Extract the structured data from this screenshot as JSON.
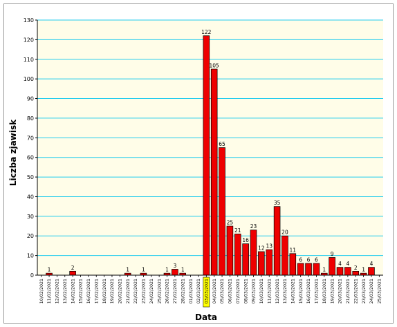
{
  "chart_data": {
    "type": "bar",
    "title": "",
    "xlabel": "Data",
    "ylabel": "Liczba zjawisk",
    "ylim": [
      0,
      130
    ],
    "ytick_step": 10,
    "grid": true,
    "highlighted_category": "03/03/2021",
    "categories": [
      "10/02/2021",
      "11/02/2021",
      "12/02/2021",
      "13/02/2021",
      "14/02/2021",
      "15/02/2021",
      "16/02/2021",
      "17/02/2021",
      "18/02/2021",
      "19/02/2021",
      "20/02/2021",
      "21/02/2021",
      "22/02/2021",
      "23/02/2021",
      "24/02/2021",
      "25/02/2021",
      "26/02/2021",
      "27/02/2021",
      "28/02/2021",
      "01/03/2021",
      "02/03/2021",
      "03/03/2021",
      "04/03/2021",
      "05/03/2021",
      "06/03/2021",
      "07/03/2021",
      "08/03/2021",
      "09/03/2021",
      "10/03/2021",
      "11/03/2021",
      "12/03/2021",
      "13/03/2021",
      "14/03/2021",
      "15/03/2021",
      "16/03/2021",
      "17/03/2021",
      "18/03/2021",
      "19/03/2021",
      "20/03/2021",
      "21/03/2021",
      "22/03/2021",
      "23/03/2021",
      "24/03/2021",
      "25/03/2021"
    ],
    "values": [
      null,
      1,
      null,
      null,
      2,
      null,
      null,
      null,
      null,
      null,
      null,
      1,
      null,
      1,
      null,
      null,
      1,
      3,
      1,
      null,
      null,
      122,
      105,
      65,
      25,
      21,
      16,
      23,
      12,
      13,
      35,
      20,
      11,
      6,
      6,
      6,
      1,
      9,
      4,
      4,
      2,
      1,
      4,
      null
    ]
  },
  "colors": {
    "plot_bg": "#fffde8",
    "grid": "#22ccee",
    "bar_fill": "#ee0000",
    "bar_stroke": "#000000",
    "highlight_bg": "#ffff00"
  }
}
